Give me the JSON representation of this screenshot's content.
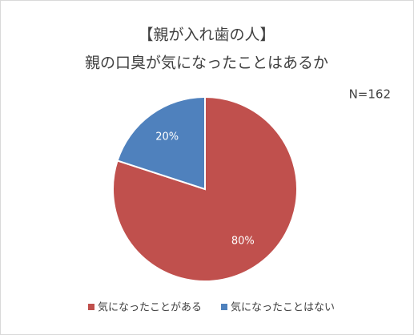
{
  "chart_data": {
    "type": "pie",
    "title": "【親が入れ歯の人】",
    "subtitle": "親の口臭が気になったことはあるか",
    "annotation": "N=162",
    "categories": [
      "気になったことがある",
      "気になったことはない"
    ],
    "values": [
      80,
      20
    ],
    "value_labels": [
      "80%",
      "20%"
    ],
    "colors": [
      "#c0504d",
      "#4f81bd"
    ],
    "legend": "bottom"
  }
}
